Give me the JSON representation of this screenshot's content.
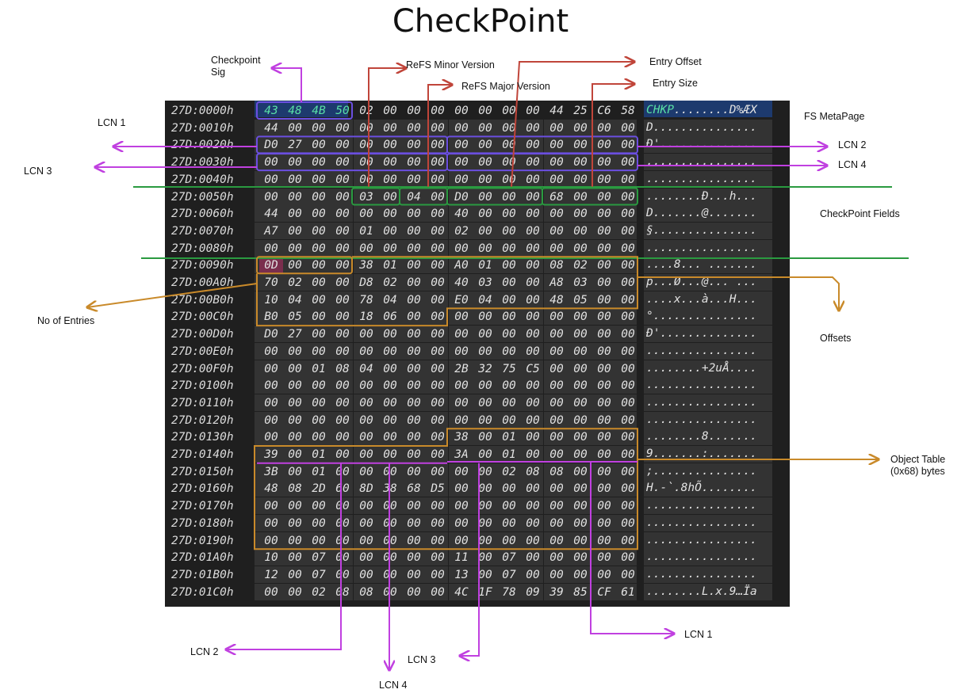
{
  "title": "CheckPoint",
  "colors": {
    "purple": "#c040e0",
    "red": "#c0453a",
    "orange": "#c98a2a",
    "green": "#2a9a40",
    "box_blue": "#6b4fe0",
    "panel": "#1f1f1f",
    "cell": "#333333"
  },
  "hex": {
    "rows": [
      {
        "offset": "27D:0000h",
        "bytes": [
          "43",
          "48",
          "4B",
          "50",
          "02",
          "00",
          "00",
          "00",
          "00",
          "00",
          "00",
          "00",
          "44",
          "25",
          "C6",
          "58"
        ],
        "ascii": "CHKP........D%ÆX"
      },
      {
        "offset": "27D:0010h",
        "bytes": [
          "44",
          "00",
          "00",
          "00",
          "00",
          "00",
          "00",
          "00",
          "00",
          "00",
          "00",
          "00",
          "00",
          "00",
          "00",
          "00"
        ],
        "ascii": "D..............."
      },
      {
        "offset": "27D:0020h",
        "bytes": [
          "D0",
          "27",
          "00",
          "00",
          "00",
          "00",
          "00",
          "00",
          "00",
          "00",
          "00",
          "00",
          "00",
          "00",
          "00",
          "00"
        ],
        "ascii": "Ð'.............."
      },
      {
        "offset": "27D:0030h",
        "bytes": [
          "00",
          "00",
          "00",
          "00",
          "00",
          "00",
          "00",
          "00",
          "00",
          "00",
          "00",
          "00",
          "00",
          "00",
          "00",
          "00"
        ],
        "ascii": "................"
      },
      {
        "offset": "27D:0040h",
        "bytes": [
          "00",
          "00",
          "00",
          "00",
          "00",
          "00",
          "00",
          "00",
          "00",
          "00",
          "00",
          "00",
          "00",
          "00",
          "00",
          "00"
        ],
        "ascii": "................"
      },
      {
        "offset": "27D:0050h",
        "bytes": [
          "00",
          "00",
          "00",
          "00",
          "03",
          "00",
          "04",
          "00",
          "D0",
          "00",
          "00",
          "00",
          "68",
          "00",
          "00",
          "00"
        ],
        "ascii": "........Ð...h..."
      },
      {
        "offset": "27D:0060h",
        "bytes": [
          "44",
          "00",
          "00",
          "00",
          "00",
          "00",
          "00",
          "00",
          "40",
          "00",
          "00",
          "00",
          "00",
          "00",
          "00",
          "00"
        ],
        "ascii": "D.......@......."
      },
      {
        "offset": "27D:0070h",
        "bytes": [
          "A7",
          "00",
          "00",
          "00",
          "01",
          "00",
          "00",
          "00",
          "02",
          "00",
          "00",
          "00",
          "00",
          "00",
          "00",
          "00"
        ],
        "ascii": "§..............."
      },
      {
        "offset": "27D:0080h",
        "bytes": [
          "00",
          "00",
          "00",
          "00",
          "00",
          "00",
          "00",
          "00",
          "00",
          "00",
          "00",
          "00",
          "00",
          "00",
          "00",
          "00"
        ],
        "ascii": "................"
      },
      {
        "offset": "27D:0090h",
        "bytes": [
          "0D",
          "00",
          "00",
          "00",
          "38",
          "01",
          "00",
          "00",
          "A0",
          "01",
          "00",
          "00",
          "08",
          "02",
          "00",
          "00"
        ],
        "ascii": "....8... ......."
      },
      {
        "offset": "27D:00A0h",
        "bytes": [
          "70",
          "02",
          "00",
          "00",
          "D8",
          "02",
          "00",
          "00",
          "40",
          "03",
          "00",
          "00",
          "A8",
          "03",
          "00",
          "00"
        ],
        "ascii": "p...Ø...@...¨..."
      },
      {
        "offset": "27D:00B0h",
        "bytes": [
          "10",
          "04",
          "00",
          "00",
          "78",
          "04",
          "00",
          "00",
          "E0",
          "04",
          "00",
          "00",
          "48",
          "05",
          "00",
          "00"
        ],
        "ascii": "....x...à...H..."
      },
      {
        "offset": "27D:00C0h",
        "bytes": [
          "B0",
          "05",
          "00",
          "00",
          "18",
          "06",
          "00",
          "00",
          "00",
          "00",
          "00",
          "00",
          "00",
          "00",
          "00",
          "00"
        ],
        "ascii": "°..............."
      },
      {
        "offset": "27D:00D0h",
        "bytes": [
          "D0",
          "27",
          "00",
          "00",
          "00",
          "00",
          "00",
          "00",
          "00",
          "00",
          "00",
          "00",
          "00",
          "00",
          "00",
          "00"
        ],
        "ascii": "Ð'.............."
      },
      {
        "offset": "27D:00E0h",
        "bytes": [
          "00",
          "00",
          "00",
          "00",
          "00",
          "00",
          "00",
          "00",
          "00",
          "00",
          "00",
          "00",
          "00",
          "00",
          "00",
          "00"
        ],
        "ascii": "................"
      },
      {
        "offset": "27D:00F0h",
        "bytes": [
          "00",
          "00",
          "01",
          "08",
          "04",
          "00",
          "00",
          "00",
          "2B",
          "32",
          "75",
          "C5",
          "00",
          "00",
          "00",
          "00"
        ],
        "ascii": "........+2uÅ...."
      },
      {
        "offset": "27D:0100h",
        "bytes": [
          "00",
          "00",
          "00",
          "00",
          "00",
          "00",
          "00",
          "00",
          "00",
          "00",
          "00",
          "00",
          "00",
          "00",
          "00",
          "00"
        ],
        "ascii": "................"
      },
      {
        "offset": "27D:0110h",
        "bytes": [
          "00",
          "00",
          "00",
          "00",
          "00",
          "00",
          "00",
          "00",
          "00",
          "00",
          "00",
          "00",
          "00",
          "00",
          "00",
          "00"
        ],
        "ascii": "................"
      },
      {
        "offset": "27D:0120h",
        "bytes": [
          "00",
          "00",
          "00",
          "00",
          "00",
          "00",
          "00",
          "00",
          "00",
          "00",
          "00",
          "00",
          "00",
          "00",
          "00",
          "00"
        ],
        "ascii": "................"
      },
      {
        "offset": "27D:0130h",
        "bytes": [
          "00",
          "00",
          "00",
          "00",
          "00",
          "00",
          "00",
          "00",
          "38",
          "00",
          "01",
          "00",
          "00",
          "00",
          "00",
          "00"
        ],
        "ascii": "........8......."
      },
      {
        "offset": "27D:0140h",
        "bytes": [
          "39",
          "00",
          "01",
          "00",
          "00",
          "00",
          "00",
          "00",
          "3A",
          "00",
          "01",
          "00",
          "00",
          "00",
          "00",
          "00"
        ],
        "ascii": "9.......:......."
      },
      {
        "offset": "27D:0150h",
        "bytes": [
          "3B",
          "00",
          "01",
          "00",
          "00",
          "00",
          "00",
          "00",
          "00",
          "00",
          "02",
          "08",
          "08",
          "00",
          "00",
          "00"
        ],
        "ascii": ";..............."
      },
      {
        "offset": "27D:0160h",
        "bytes": [
          "48",
          "08",
          "2D",
          "60",
          "8D",
          "38",
          "68",
          "D5",
          "00",
          "00",
          "00",
          "00",
          "00",
          "00",
          "00",
          "00"
        ],
        "ascii": "H.-`.8hÕ........"
      },
      {
        "offset": "27D:0170h",
        "bytes": [
          "00",
          "00",
          "00",
          "00",
          "00",
          "00",
          "00",
          "00",
          "00",
          "00",
          "00",
          "00",
          "00",
          "00",
          "00",
          "00"
        ],
        "ascii": "................"
      },
      {
        "offset": "27D:0180h",
        "bytes": [
          "00",
          "00",
          "00",
          "00",
          "00",
          "00",
          "00",
          "00",
          "00",
          "00",
          "00",
          "00",
          "00",
          "00",
          "00",
          "00"
        ],
        "ascii": "................"
      },
      {
        "offset": "27D:0190h",
        "bytes": [
          "00",
          "00",
          "00",
          "00",
          "00",
          "00",
          "00",
          "00",
          "00",
          "00",
          "00",
          "00",
          "00",
          "00",
          "00",
          "00"
        ],
        "ascii": "................"
      },
      {
        "offset": "27D:01A0h",
        "bytes": [
          "10",
          "00",
          "07",
          "00",
          "00",
          "00",
          "00",
          "00",
          "11",
          "00",
          "07",
          "00",
          "00",
          "00",
          "00",
          "00"
        ],
        "ascii": "................"
      },
      {
        "offset": "27D:01B0h",
        "bytes": [
          "12",
          "00",
          "07",
          "00",
          "00",
          "00",
          "00",
          "00",
          "13",
          "00",
          "07",
          "00",
          "00",
          "00",
          "00",
          "00"
        ],
        "ascii": "................"
      },
      {
        "offset": "27D:01C0h",
        "bytes": [
          "00",
          "00",
          "02",
          "08",
          "08",
          "00",
          "00",
          "00",
          "4C",
          "1F",
          "78",
          "09",
          "39",
          "85",
          "CF",
          "61"
        ],
        "ascii": "........L.x.9…Ïa"
      }
    ]
  },
  "labels": {
    "checkpoint_sig": "Checkpoint\nSig",
    "refs_minor": "ReFS Minor Version",
    "refs_major": "ReFS Major Version",
    "entry_offset": "Entry Offset",
    "entry_size": "Entry Size",
    "fs_metapage": "FS MetaPage",
    "lcn1_top": "LCN 1",
    "lcn2_right": "LCN 2",
    "lcn3_left": "LCN 3",
    "lcn4_right": "LCN 4",
    "checkpoint_fields": "CheckPoint  Fields",
    "no_of_entries": "No of Entries",
    "offsets": "Offsets",
    "object_table": "Object Table\n(0x68) bytes",
    "lcn2_bottom": "LCN 2",
    "lcn3_bottom": "LCN 3",
    "lcn4_bottom": "LCN 4",
    "lcn1_bottom": "LCN 1"
  }
}
